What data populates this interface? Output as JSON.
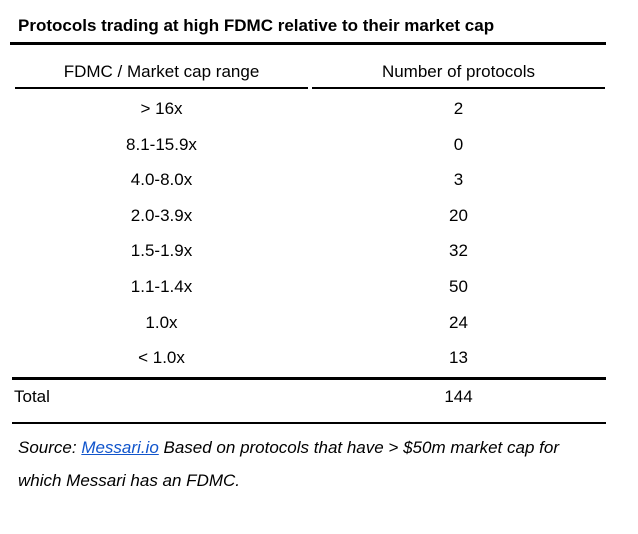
{
  "title": "Protocols trading at high FDMC relative to their market cap",
  "table": {
    "columns": [
      "FDMC / Market cap range",
      "Number of protocols"
    ],
    "rows": [
      {
        "range": "> 16x",
        "count": "2"
      },
      {
        "range": "8.1-15.9x",
        "count": "0"
      },
      {
        "range": "4.0-8.0x",
        "count": "3"
      },
      {
        "range": "2.0-3.9x",
        "count": "20"
      },
      {
        "range": "1.5-1.9x",
        "count": "32"
      },
      {
        "range": "1.1-1.4x",
        "count": "50"
      },
      {
        "range": "1.0x",
        "count": "24"
      },
      {
        "range": "< 1.0x",
        "count": "13"
      }
    ],
    "total_label": "Total",
    "total_value": "144"
  },
  "source": {
    "prefix": "Source: ",
    "link_text": "Messari.io",
    "suffix": " Based on protocols that have > $50m market cap for which Messari has an FDMC.",
    "link_color": "#1155cc",
    "text_color": "#000000"
  },
  "chart_data": {
    "type": "table",
    "title": "Protocols trading at high FDMC relative to their market cap",
    "columns": [
      "FDMC / Market cap range",
      "Number of protocols"
    ],
    "categories": [
      "> 16x",
      "8.1-15.9x",
      "4.0-8.0x",
      "2.0-3.9x",
      "1.5-1.9x",
      "1.1-1.4x",
      "1.0x",
      "< 1.0x"
    ],
    "values": [
      2,
      0,
      3,
      20,
      32,
      50,
      24,
      13
    ],
    "total": 144,
    "source_note": "Source: Messari.io Based on protocols that have > $50m market cap for which Messari has an FDMC.",
    "layout": "two-column table, values centered, rules under title, under headers, above and below total row"
  }
}
